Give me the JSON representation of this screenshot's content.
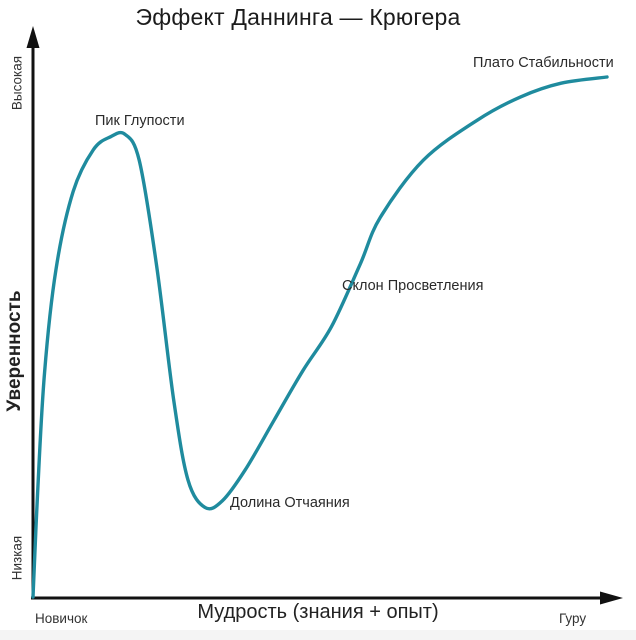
{
  "title": "Эффект Даннинга — Крюгера",
  "chart_data": {
    "type": "line",
    "title": "Эффект Даннинга — Крюгера",
    "xlabel": "Мудрость (знания + опыт)",
    "ylabel": "Уверенность",
    "x_axis_endpoint_labels": {
      "min": "Новичок",
      "max": "Гуру"
    },
    "y_axis_endpoint_labels": {
      "min": "Низкая",
      "max": "Высокая"
    },
    "grid": false,
    "legend": false,
    "line_color": "#1f8b9e",
    "axis_color": "#111111",
    "x_range": [
      0,
      1
    ],
    "y_range": [
      0,
      1
    ],
    "points_normalized": [
      [
        0.0,
        0.0
      ],
      [
        0.008,
        0.2
      ],
      [
        0.02,
        0.43
      ],
      [
        0.04,
        0.63
      ],
      [
        0.07,
        0.78
      ],
      [
        0.105,
        0.86
      ],
      [
        0.135,
        0.885
      ],
      [
        0.16,
        0.89
      ],
      [
        0.185,
        0.84
      ],
      [
        0.215,
        0.64
      ],
      [
        0.245,
        0.38
      ],
      [
        0.27,
        0.225
      ],
      [
        0.3,
        0.172
      ],
      [
        0.33,
        0.185
      ],
      [
        0.37,
        0.245
      ],
      [
        0.42,
        0.34
      ],
      [
        0.47,
        0.435
      ],
      [
        0.52,
        0.52
      ],
      [
        0.57,
        0.64
      ],
      [
        0.605,
        0.73
      ],
      [
        0.68,
        0.84
      ],
      [
        0.774,
        0.917
      ],
      [
        0.85,
        0.962
      ],
      [
        0.92,
        0.988
      ],
      [
        1.0,
        1.0
      ]
    ],
    "annotations": [
      {
        "label": "Пик Глупости",
        "x": 0.16,
        "y": 0.89
      },
      {
        "label": "Долина Отчаяния",
        "x": 0.3,
        "y": 0.17
      },
      {
        "label": "Склон Просветления",
        "x": 0.52,
        "y": 0.52
      },
      {
        "label": "Плато Стабильности",
        "x": 0.95,
        "y": 0.99
      }
    ]
  }
}
